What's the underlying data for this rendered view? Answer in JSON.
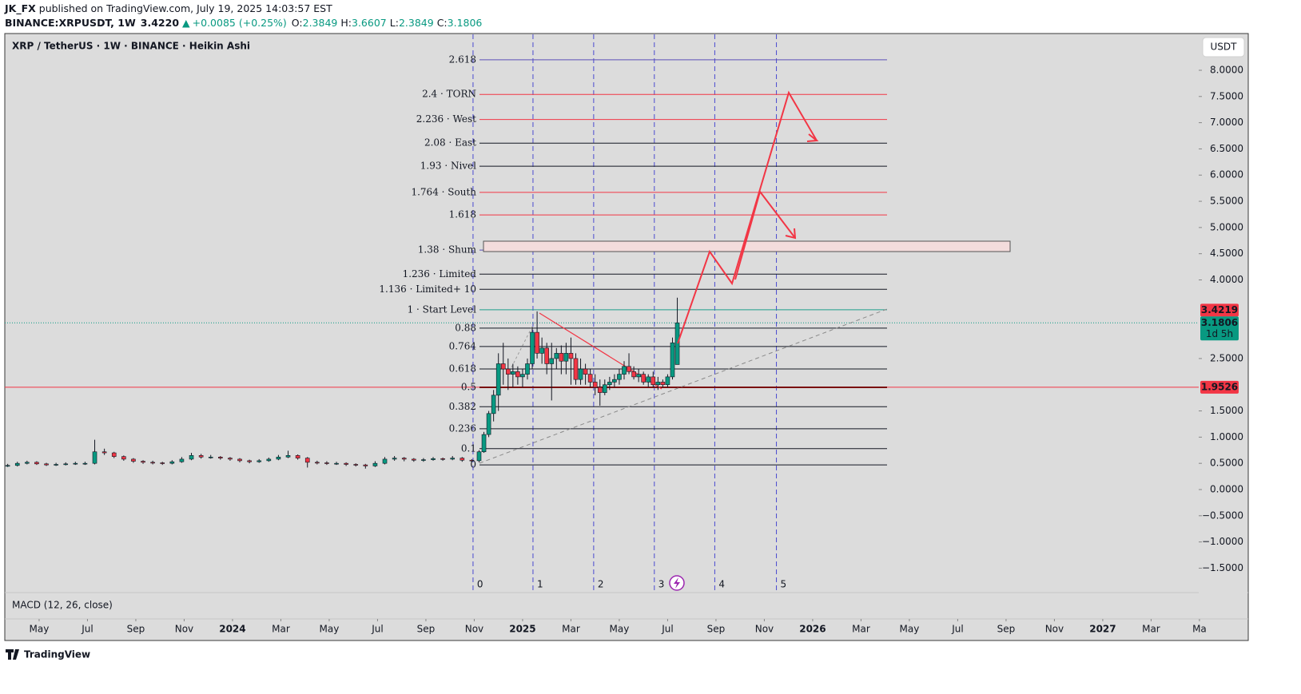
{
  "header": {
    "author": "JK_FX",
    "published": "published on TradingView.com, July 19, 2025 14:03:57 EST",
    "symbol": "BINANCE:XRPUSDT, 1W",
    "last": "3.4220",
    "change": "+0.0085 (+0.25%)",
    "ohlc": [
      {
        "key": "O:",
        "value": "2.3849"
      },
      {
        "key": "H:",
        "value": "3.6607"
      },
      {
        "key": "L:",
        "value": "2.3849"
      },
      {
        "key": "C:",
        "value": "3.1806"
      }
    ]
  },
  "chart_data": {
    "type": "candlestick",
    "title": "XRP / TetherUS · 1W · BINANCE · Heikin Ashi",
    "currency": "USDT",
    "indicator": "MACD (12, 26, close)",
    "up_color": "#089981",
    "down_color": "#f23645",
    "xlim": [
      -1.42,
      48.3
    ],
    "ylim": [
      -1.966,
      8.701
    ],
    "xticks": [
      {
        "value": 0,
        "label": "May"
      },
      {
        "value": 2,
        "label": "Jul"
      },
      {
        "value": 4,
        "label": "Sep"
      },
      {
        "value": 6,
        "label": "Nov"
      },
      {
        "value": 8,
        "label": "2024"
      },
      {
        "value": 10,
        "label": "Mar"
      },
      {
        "value": 12,
        "label": "May"
      },
      {
        "value": 14,
        "label": "Jul"
      },
      {
        "value": 16,
        "label": "Sep"
      },
      {
        "value": 18,
        "label": "Nov"
      },
      {
        "value": 20,
        "label": "2025"
      },
      {
        "value": 22,
        "label": "Mar"
      },
      {
        "value": 24,
        "label": "May"
      },
      {
        "value": 26,
        "label": "Jul"
      },
      {
        "value": 28,
        "label": "Sep"
      },
      {
        "value": 30,
        "label": "Nov"
      },
      {
        "value": 32,
        "label": "2026"
      },
      {
        "value": 34,
        "label": "Mar"
      },
      {
        "value": 36,
        "label": "May"
      },
      {
        "value": 38,
        "label": "Jul"
      },
      {
        "value": 40,
        "label": "Sep"
      },
      {
        "value": 42,
        "label": "Nov"
      },
      {
        "value": 44,
        "label": "2027"
      },
      {
        "value": 46,
        "label": "Mar"
      },
      {
        "value": 48,
        "label": "Ma"
      }
    ],
    "yticks": [
      {
        "value": 8,
        "label": "8.0000"
      },
      {
        "value": 7.5,
        "label": "7.5000"
      },
      {
        "value": 7,
        "label": "7.0000"
      },
      {
        "value": 6.5,
        "label": "6.5000"
      },
      {
        "value": 6,
        "label": "6.0000"
      },
      {
        "value": 5.5,
        "label": "5.5000"
      },
      {
        "value": 5,
        "label": "5.0000"
      },
      {
        "value": 4.5,
        "label": "4.5000"
      },
      {
        "value": 4,
        "label": "4.0000"
      },
      {
        "value": 2.5,
        "label": "2.5000"
      },
      {
        "value": 1.5,
        "label": "1.5000"
      },
      {
        "value": 1,
        "label": "1.0000"
      },
      {
        "value": 0.5,
        "label": "0.5000"
      },
      {
        "value": 0,
        "label": "0.0000"
      },
      {
        "value": -0.5,
        "label": "−0.5000"
      },
      {
        "value": -1,
        "label": "−1.0000"
      },
      {
        "value": -1.5,
        "label": "−1.5000"
      }
    ],
    "price_labels": [
      {
        "value": 3.4219,
        "color": "#f23645"
      },
      {
        "value": 3.1806,
        "countdown": "1d 5h",
        "color": "#089981",
        "line": "dotted"
      },
      {
        "value": 1.9526,
        "color": "#f23645",
        "line": "solid"
      }
    ],
    "fib_levels": [
      {
        "value": 8.2,
        "label": "2.618",
        "color": "#5b4fb8"
      },
      {
        "value": 7.54,
        "label": "2.4 · TORN",
        "color": "#f23645"
      },
      {
        "value": 7.06,
        "label": "2.236 · West",
        "color": "#f23645"
      },
      {
        "value": 6.61,
        "label": "2.08 · East",
        "color": "#131722"
      },
      {
        "value": 6.17,
        "label": "1.93 · Nivel",
        "color": "#131722"
      },
      {
        "value": 5.67,
        "label": "1.764 · South",
        "color": "#f23645"
      },
      {
        "value": 5.24,
        "label": "1.618",
        "color": "#f23645"
      },
      {
        "value": 4.57,
        "label": "1.38 · Shum",
        "color": "#5b4fb8"
      },
      {
        "value": 4.11,
        "label": "1.236 · Limited",
        "color": "#131722"
      },
      {
        "value": 3.82,
        "label": "1.136 · Limited+ 10",
        "color": "#131722"
      },
      {
        "value": 3.43,
        "label": "1 · Start Level",
        "color": "#1e9e8a"
      },
      {
        "value": 3.08,
        "label": "0.88",
        "color": "#131722"
      },
      {
        "value": 2.73,
        "label": "0.764",
        "color": "#131722"
      },
      {
        "value": 2.3,
        "label": "0.618",
        "color": "#131722"
      },
      {
        "value": 1.95,
        "label": "0.5",
        "color": "#7a1010"
      },
      {
        "value": 1.58,
        "label": "0.382",
        "color": "#131722"
      },
      {
        "value": 1.16,
        "label": "0.236",
        "color": "#131722"
      },
      {
        "value": 0.78,
        "label": "0.1",
        "color": "#131722"
      },
      {
        "value": 0.47,
        "label": "0",
        "color": "#131722"
      }
    ],
    "cycles": [
      {
        "x": 17.95,
        "label": "0"
      },
      {
        "x": 20.43,
        "label": "1"
      },
      {
        "x": 22.94,
        "label": "2"
      },
      {
        "x": 25.45,
        "label": "3"
      },
      {
        "x": 27.95,
        "label": "4"
      },
      {
        "x": 30.5,
        "label": "5"
      }
    ],
    "candles": [
      [
        -1.3,
        0.45,
        0.49,
        0.43,
        0.46
      ],
      [
        -0.9,
        0.46,
        0.53,
        0.44,
        0.5
      ],
      [
        -0.5,
        0.5,
        0.55,
        0.48,
        0.52
      ],
      [
        -0.1,
        0.52,
        0.54,
        0.47,
        0.49
      ],
      [
        0.3,
        0.49,
        0.51,
        0.45,
        0.47
      ],
      [
        0.7,
        0.47,
        0.51,
        0.45,
        0.48
      ],
      [
        1.1,
        0.48,
        0.52,
        0.46,
        0.49
      ],
      [
        1.5,
        0.49,
        0.53,
        0.47,
        0.5
      ],
      [
        1.9,
        0.5,
        0.53,
        0.47,
        0.5
      ],
      [
        2.3,
        0.5,
        0.95,
        0.48,
        0.72
      ],
      [
        2.7,
        0.72,
        0.78,
        0.66,
        0.7
      ],
      [
        3.1,
        0.7,
        0.72,
        0.6,
        0.63
      ],
      [
        3.5,
        0.63,
        0.65,
        0.55,
        0.58
      ],
      [
        3.9,
        0.58,
        0.6,
        0.51,
        0.54
      ],
      [
        4.3,
        0.54,
        0.56,
        0.49,
        0.52
      ],
      [
        4.7,
        0.52,
        0.55,
        0.48,
        0.51
      ],
      [
        5.1,
        0.51,
        0.53,
        0.47,
        0.5
      ],
      [
        5.5,
        0.5,
        0.56,
        0.48,
        0.53
      ],
      [
        5.9,
        0.53,
        0.62,
        0.51,
        0.58
      ],
      [
        6.3,
        0.58,
        0.7,
        0.56,
        0.65
      ],
      [
        6.7,
        0.65,
        0.68,
        0.59,
        0.62
      ],
      [
        7.1,
        0.62,
        0.66,
        0.59,
        0.62
      ],
      [
        7.5,
        0.62,
        0.64,
        0.57,
        0.6
      ],
      [
        7.9,
        0.6,
        0.62,
        0.55,
        0.58
      ],
      [
        8.3,
        0.58,
        0.6,
        0.52,
        0.55
      ],
      [
        8.7,
        0.55,
        0.57,
        0.5,
        0.53
      ],
      [
        9.1,
        0.53,
        0.58,
        0.51,
        0.55
      ],
      [
        9.5,
        0.55,
        0.61,
        0.53,
        0.58
      ],
      [
        9.9,
        0.58,
        0.66,
        0.56,
        0.62
      ],
      [
        10.3,
        0.62,
        0.74,
        0.6,
        0.65
      ],
      [
        10.7,
        0.65,
        0.67,
        0.57,
        0.6
      ],
      [
        11.1,
        0.6,
        0.62,
        0.42,
        0.52
      ],
      [
        11.5,
        0.52,
        0.55,
        0.48,
        0.51
      ],
      [
        11.9,
        0.51,
        0.54,
        0.47,
        0.5
      ],
      [
        12.3,
        0.5,
        0.53,
        0.47,
        0.5
      ],
      [
        12.7,
        0.5,
        0.52,
        0.45,
        0.48
      ],
      [
        13.1,
        0.48,
        0.5,
        0.44,
        0.47
      ],
      [
        13.5,
        0.47,
        0.49,
        0.4,
        0.45
      ],
      [
        13.9,
        0.45,
        0.54,
        0.43,
        0.5
      ],
      [
        14.3,
        0.5,
        0.62,
        0.48,
        0.58
      ],
      [
        14.7,
        0.58,
        0.64,
        0.55,
        0.6
      ],
      [
        15.1,
        0.6,
        0.62,
        0.54,
        0.58
      ],
      [
        15.5,
        0.58,
        0.6,
        0.53,
        0.56
      ],
      [
        15.9,
        0.56,
        0.6,
        0.53,
        0.57
      ],
      [
        16.3,
        0.57,
        0.62,
        0.55,
        0.59
      ],
      [
        16.7,
        0.59,
        0.61,
        0.55,
        0.58
      ],
      [
        17.1,
        0.58,
        0.64,
        0.56,
        0.6
      ],
      [
        17.5,
        0.6,
        0.62,
        0.53,
        0.56
      ],
      [
        17.9,
        0.56,
        0.58,
        0.52,
        0.55
      ],
      [
        18.2,
        0.55,
        0.75,
        0.52,
        0.72
      ],
      [
        18.4,
        0.72,
        1.1,
        0.7,
        1.05
      ],
      [
        18.6,
        1.05,
        1.5,
        1.0,
        1.45
      ],
      [
        18.8,
        1.45,
        1.9,
        1.3,
        1.8
      ],
      [
        19.0,
        1.8,
        2.6,
        1.5,
        2.4
      ],
      [
        19.2,
        2.4,
        2.8,
        2.0,
        2.3
      ],
      [
        19.4,
        2.3,
        2.5,
        1.9,
        2.2
      ],
      [
        19.6,
        2.2,
        2.4,
        1.95,
        2.25
      ],
      [
        19.8,
        2.25,
        2.35,
        2.0,
        2.15
      ],
      [
        20.0,
        2.15,
        2.3,
        1.95,
        2.2
      ],
      [
        20.2,
        2.2,
        2.5,
        2.1,
        2.4
      ],
      [
        20.4,
        2.4,
        3.1,
        2.3,
        3.0
      ],
      [
        20.6,
        3.0,
        3.4,
        2.5,
        2.6
      ],
      [
        20.8,
        2.6,
        2.9,
        2.4,
        2.7
      ],
      [
        21.0,
        2.7,
        2.8,
        2.2,
        2.4
      ],
      [
        21.2,
        2.4,
        2.8,
        1.7,
        2.5
      ],
      [
        21.4,
        2.5,
        2.7,
        2.3,
        2.6
      ],
      [
        21.6,
        2.6,
        2.75,
        2.2,
        2.45
      ],
      [
        21.8,
        2.45,
        2.8,
        2.2,
        2.6
      ],
      [
        22.0,
        2.6,
        2.9,
        2.0,
        2.5
      ],
      [
        22.2,
        2.5,
        2.6,
        2.0,
        2.1
      ],
      [
        22.4,
        2.1,
        2.5,
        2.0,
        2.3
      ],
      [
        22.6,
        2.3,
        2.4,
        2.0,
        2.2
      ],
      [
        22.8,
        2.2,
        2.3,
        1.95,
        2.05
      ],
      [
        23.0,
        2.05,
        2.2,
        1.8,
        1.95
      ],
      [
        23.2,
        1.95,
        2.1,
        1.6,
        1.85
      ],
      [
        23.4,
        1.85,
        2.1,
        1.8,
        2.0
      ],
      [
        23.6,
        2.0,
        2.15,
        1.9,
        2.05
      ],
      [
        23.8,
        2.05,
        2.2,
        1.95,
        2.1
      ],
      [
        24.0,
        2.1,
        2.3,
        2.0,
        2.2
      ],
      [
        24.2,
        2.2,
        2.45,
        2.1,
        2.35
      ],
      [
        24.4,
        2.35,
        2.6,
        2.2,
        2.25
      ],
      [
        24.6,
        2.25,
        2.35,
        2.1,
        2.15
      ],
      [
        24.8,
        2.15,
        2.3,
        2.05,
        2.2
      ],
      [
        25.0,
        2.2,
        2.25,
        2.0,
        2.05
      ],
      [
        25.2,
        2.05,
        2.2,
        1.95,
        2.15
      ],
      [
        25.4,
        2.15,
        2.25,
        1.95,
        2.0
      ],
      [
        25.6,
        2.0,
        2.15,
        1.9,
        2.05
      ],
      [
        25.8,
        2.05,
        2.1,
        1.95,
        2.0
      ],
      [
        26.0,
        2.0,
        2.2,
        1.95,
        2.15
      ],
      [
        26.2,
        2.15,
        2.9,
        2.1,
        2.8
      ],
      [
        26.4,
        2.3849,
        3.6607,
        2.3849,
        3.1806
      ]
    ]
  },
  "footer": {
    "brand": "TradingView"
  }
}
